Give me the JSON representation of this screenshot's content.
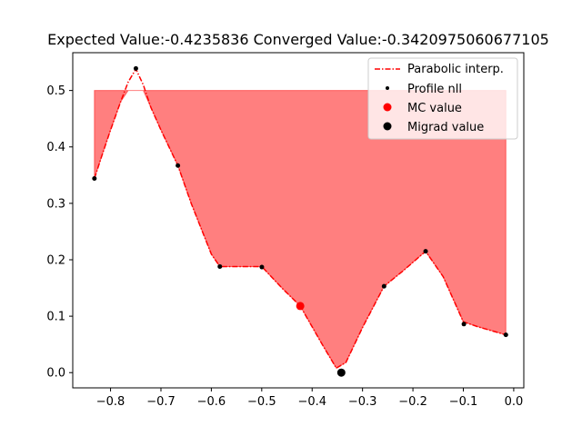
{
  "chart_data": {
    "type": "line",
    "title": "Expected Value:-0.4235836 Converged Value:-0.3420975060677105",
    "xlabel": "",
    "ylabel": "",
    "xlim": [
      -0.875,
      0.02
    ],
    "ylim": [
      -0.027,
      0.567
    ],
    "xticks": [
      -0.8,
      -0.7,
      -0.6,
      -0.5,
      -0.4,
      -0.3,
      -0.2,
      -0.1,
      0.0
    ],
    "xtick_labels": [
      "−0.8",
      "−0.7",
      "−0.6",
      "−0.5",
      "−0.4",
      "−0.3",
      "−0.2",
      "−0.1",
      "0.0"
    ],
    "yticks": [
      0.0,
      0.1,
      0.2,
      0.3,
      0.4,
      0.5
    ],
    "ytick_labels": [
      "0.0",
      "0.1",
      "0.2",
      "0.3",
      "0.4",
      "0.5"
    ],
    "grid": false,
    "legend_position": "top-right",
    "colors": {
      "interp": "#ff0000",
      "fill": "#ff0000",
      "profile": "#000000",
      "mc": "#ff0000",
      "migrad": "#000000"
    },
    "series": [
      {
        "name": "Parabolic interp.",
        "style": "dash-dot",
        "x": [
          -0.832,
          -0.817,
          -0.8,
          -0.78,
          -0.765,
          -0.7497,
          -0.735,
          -0.72,
          -0.7,
          -0.6664,
          -0.64,
          -0.6,
          -0.5831,
          -0.55,
          -0.5,
          -0.46,
          -0.4235836,
          -0.38,
          -0.352,
          -0.333,
          -0.3,
          -0.2573,
          -0.22,
          -0.1748,
          -0.14,
          -0.1,
          -0.07,
          -0.0156
        ],
        "y": [
          0.344,
          0.385,
          0.43,
          0.48,
          0.515,
          0.538,
          0.51,
          0.47,
          0.43,
          0.367,
          0.3,
          0.21,
          0.188,
          0.188,
          0.188,
          0.15,
          0.118,
          0.05,
          0.008,
          0.018,
          0.08,
          0.153,
          0.18,
          0.215,
          0.17,
          0.09,
          0.081,
          0.067
        ]
      },
      {
        "name": "Profile nll",
        "style": "points",
        "x": [
          -0.832,
          -0.7497,
          -0.6664,
          -0.5831,
          -0.4998,
          -0.2573,
          -0.1748,
          -0.0989,
          -0.0156
        ],
        "y": [
          0.344,
          0.539,
          0.367,
          0.188,
          0.187,
          0.153,
          0.215,
          0.086,
          0.067
        ]
      },
      {
        "name": "MC value",
        "style": "marker",
        "x": [
          -0.4235836
        ],
        "y": [
          0.118
        ]
      },
      {
        "name": "Migrad value",
        "style": "marker",
        "x": [
          -0.3420975060677105
        ],
        "y": [
          0.0
        ]
      }
    ],
    "shaded_region": {
      "upper": 0.5,
      "x": [
        -0.832,
        -0.817,
        -0.8,
        -0.78,
        -0.765,
        -0.7497,
        -0.735,
        -0.72,
        -0.7,
        -0.6664,
        -0.64,
        -0.6,
        -0.5831,
        -0.55,
        -0.5,
        -0.46,
        -0.4235836,
        -0.38,
        -0.352,
        -0.333,
        -0.3,
        -0.2573,
        -0.22,
        -0.1748,
        -0.14,
        -0.1,
        -0.07,
        -0.0156
      ],
      "lower": [
        0.344,
        0.385,
        0.43,
        0.48,
        0.5,
        0.5,
        0.5,
        0.47,
        0.43,
        0.367,
        0.3,
        0.21,
        0.188,
        0.188,
        0.188,
        0.15,
        0.118,
        0.05,
        0.008,
        0.018,
        0.08,
        0.153,
        0.18,
        0.215,
        0.17,
        0.09,
        0.081,
        0.067
      ]
    }
  }
}
